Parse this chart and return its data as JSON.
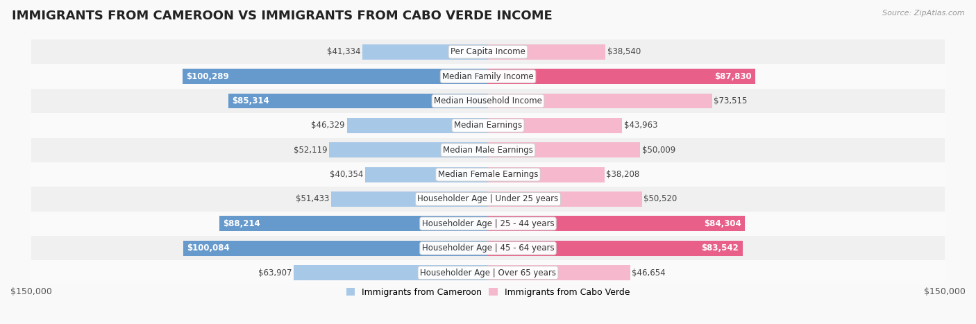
{
  "title": "IMMIGRANTS FROM CAMEROON VS IMMIGRANTS FROM CABO VERDE INCOME",
  "source": "Source: ZipAtlas.com",
  "categories": [
    "Per Capita Income",
    "Median Family Income",
    "Median Household Income",
    "Median Earnings",
    "Median Male Earnings",
    "Median Female Earnings",
    "Householder Age | Under 25 years",
    "Householder Age | 25 - 44 years",
    "Householder Age | 45 - 64 years",
    "Householder Age | Over 65 years"
  ],
  "cameroon_values": [
    41334,
    100289,
    85314,
    46329,
    52119,
    40354,
    51433,
    88214,
    100084,
    63907
  ],
  "caboverde_values": [
    38540,
    87830,
    73515,
    43963,
    50009,
    38208,
    50520,
    84304,
    83542,
    46654
  ],
  "cameroon_labels": [
    "$41,334",
    "$100,289",
    "$85,314",
    "$46,329",
    "$52,119",
    "$40,354",
    "$51,433",
    "$88,214",
    "$100,084",
    "$63,907"
  ],
  "caboverde_labels": [
    "$38,540",
    "$87,830",
    "$73,515",
    "$43,963",
    "$50,009",
    "$38,208",
    "$50,520",
    "$84,304",
    "$83,542",
    "$46,654"
  ],
  "cameroon_color_light": "#a8c8e8",
  "cameroon_color_dark": "#6699cc",
  "caboverde_color_light": "#f5b8cc",
  "caboverde_color_dark": "#e8608a",
  "max_value": 150000,
  "bar_height": 0.62,
  "title_fontsize": 13,
  "label_fontsize": 8.5,
  "legend_fontsize": 9,
  "source_fontsize": 8,
  "row_colors": [
    "#f0f0f0",
    "#fafafa"
  ],
  "large_threshold": 75000
}
